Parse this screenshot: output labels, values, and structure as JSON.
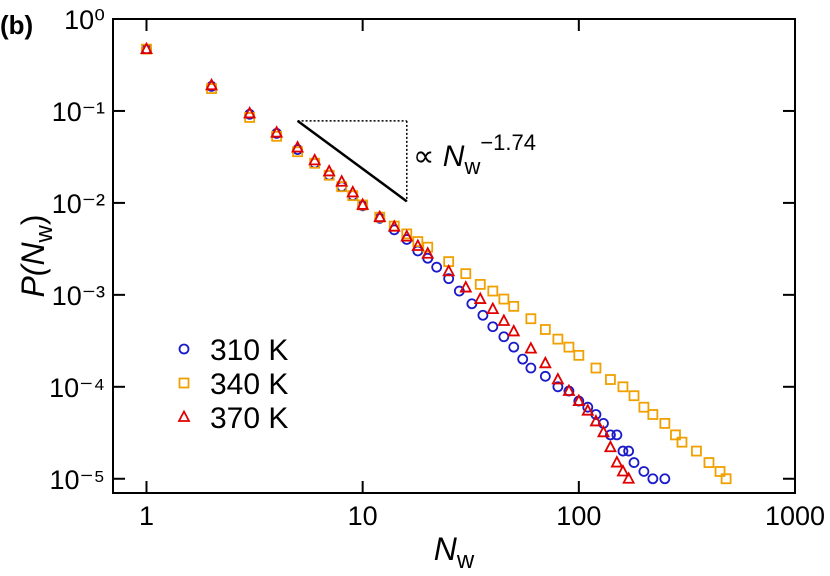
{
  "chart_data": {
    "type": "scatter",
    "panel_label": "(b)",
    "x_label": {
      "main": "N",
      "sub": "w"
    },
    "y_label": {
      "main": "P(",
      "italic": "N",
      "sub": "w",
      "close": ")"
    },
    "annotation": {
      "symbol": "∝ ",
      "main": "N",
      "sub": "w",
      "sup": "−1.74"
    },
    "guide": {
      "x": [
        5,
        16
      ],
      "y": [
        0.078,
        0.0104
      ]
    },
    "log_x": true,
    "log_y": true,
    "xlim": [
      0.7,
      1000
    ],
    "xticks": [
      1,
      10,
      100,
      1000
    ],
    "ylim": [
      7e-06,
      1
    ],
    "yticks": [
      {
        "value": 1,
        "label": "10⁰"
      },
      {
        "value": 0.1,
        "label": "10⁻¹"
      },
      {
        "value": 0.01,
        "label": "10⁻²"
      },
      {
        "value": 0.001,
        "label": "10⁻³"
      },
      {
        "value": 0.0001,
        "label": "10⁻⁴"
      },
      {
        "value": 1e-05,
        "label": "10⁻⁵"
      }
    ],
    "series": [
      {
        "name": "310 K",
        "color": "#1a1ac8",
        "marker": "circle",
        "x": [
          1,
          2,
          3,
          4,
          5,
          6,
          7,
          8,
          9,
          10,
          12,
          14,
          16,
          18,
          20,
          22,
          25,
          28,
          32,
          36,
          40,
          45,
          50,
          55,
          60,
          70,
          80,
          90,
          100,
          110,
          120,
          130,
          140,
          150,
          160,
          170,
          180,
          200,
          220,
          250
        ],
        "values": [
          0.47,
          0.185,
          0.092,
          0.057,
          0.038,
          0.027,
          0.02,
          0.015,
          0.012,
          0.0093,
          0.0068,
          0.0051,
          0.004,
          0.003,
          0.0025,
          0.002,
          0.0015,
          0.0011,
          0.0008,
          0.0006,
          0.00045,
          0.00035,
          0.00027,
          0.0002,
          0.00016,
          0.00013,
          0.0001,
          9e-05,
          7e-05,
          6e-05,
          5e-05,
          4e-05,
          3e-05,
          3e-05,
          2e-05,
          2e-05,
          1.5e-05,
          1.2e-05,
          1e-05,
          1e-05
        ]
      },
      {
        "name": "340 K",
        "color": "#f0a000",
        "marker": "square",
        "x": [
          1,
          2,
          3,
          4,
          5,
          6,
          7,
          8,
          9,
          10,
          12,
          14,
          16,
          18,
          20,
          25,
          30,
          35,
          40,
          45,
          50,
          60,
          70,
          80,
          90,
          100,
          120,
          140,
          160,
          180,
          200,
          220,
          250,
          280,
          300,
          350,
          400,
          450,
          480
        ],
        "values": [
          0.47,
          0.175,
          0.085,
          0.053,
          0.036,
          0.027,
          0.02,
          0.015,
          0.012,
          0.0095,
          0.007,
          0.0056,
          0.0046,
          0.0038,
          0.0033,
          0.0023,
          0.0017,
          0.0013,
          0.0011,
          0.0009,
          0.00075,
          0.00055,
          0.00042,
          0.00033,
          0.00027,
          0.00022,
          0.00016,
          0.00012,
          0.0001,
          8e-05,
          6e-05,
          5e-05,
          4e-05,
          3e-05,
          2.5e-05,
          2e-05,
          1.5e-05,
          1.2e-05,
          1e-05
        ]
      },
      {
        "name": "370 K",
        "color": "#e00000",
        "marker": "triangle",
        "x": [
          1,
          2,
          3,
          4,
          5,
          6,
          7,
          8,
          9,
          10,
          12,
          14,
          16,
          18,
          20,
          25,
          30,
          35,
          40,
          45,
          50,
          60,
          70,
          80,
          90,
          100,
          110,
          120,
          130,
          140,
          150,
          160,
          170
        ],
        "values": [
          0.47,
          0.19,
          0.094,
          0.058,
          0.04,
          0.029,
          0.022,
          0.017,
          0.013,
          0.0095,
          0.007,
          0.0055,
          0.0043,
          0.0034,
          0.0028,
          0.0018,
          0.0012,
          0.0009,
          0.0007,
          0.00052,
          0.0004,
          0.00026,
          0.00018,
          0.00012,
          9e-05,
          7e-05,
          5.5e-05,
          4.2e-05,
          3.2e-05,
          2.2e-05,
          1.5e-05,
          1.2e-05,
          1e-05
        ]
      }
    ]
  }
}
